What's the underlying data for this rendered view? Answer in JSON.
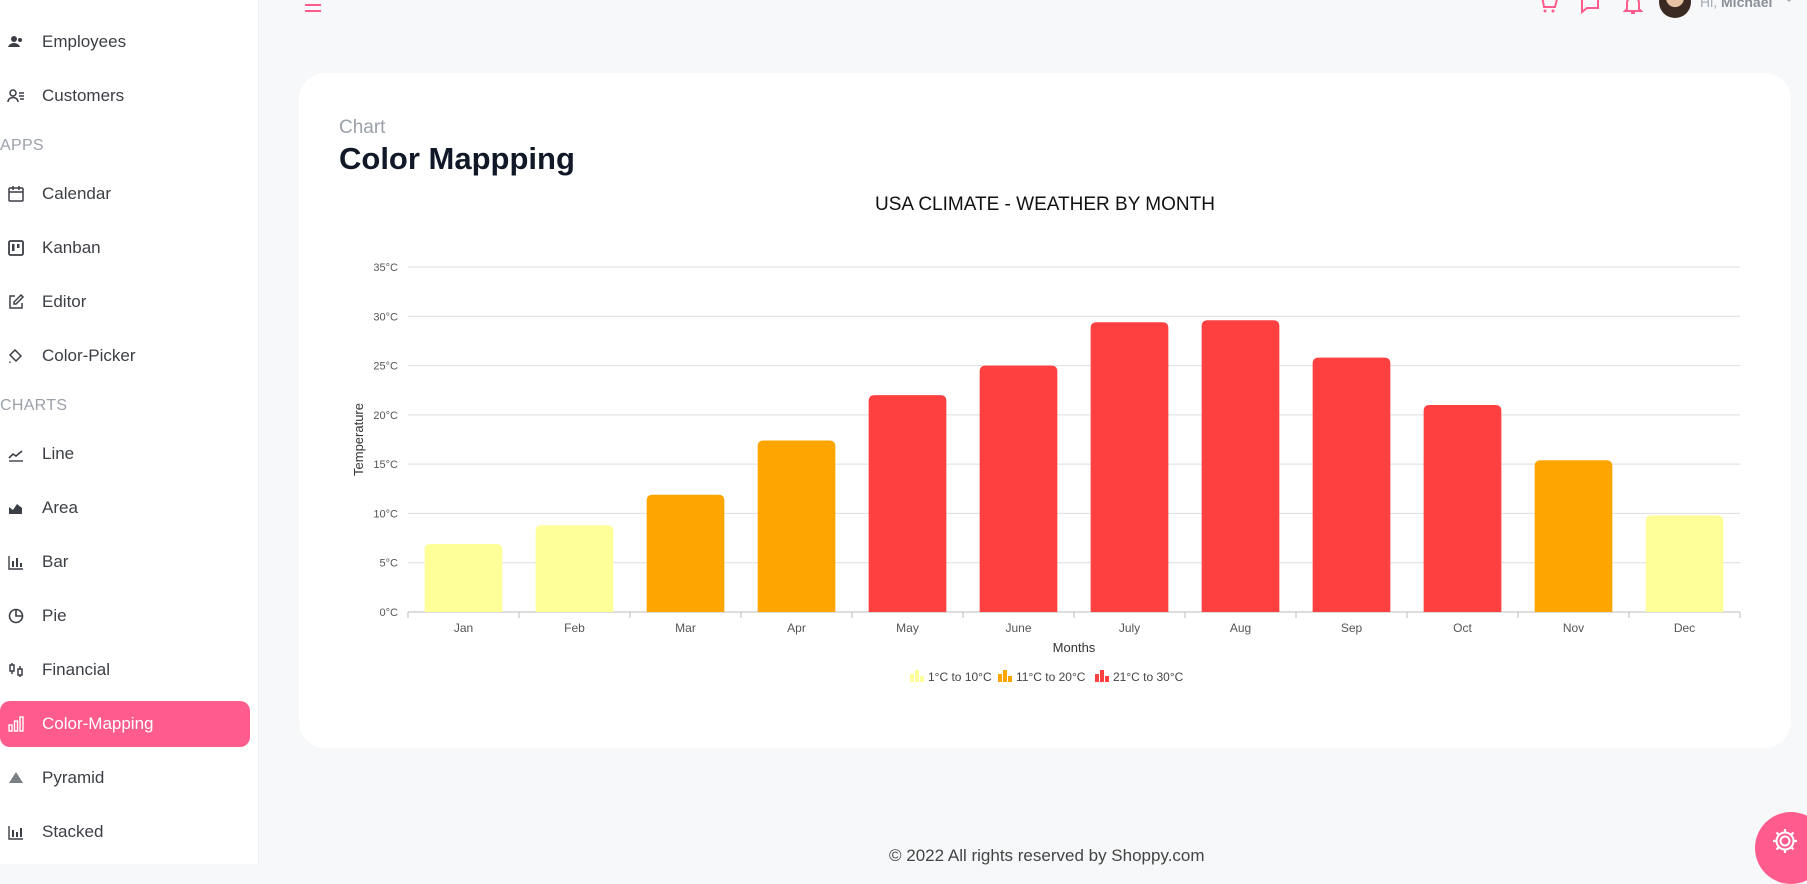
{
  "sidebar": {
    "items_top": [
      {
        "label": "Employees",
        "icon": "employees-icon"
      },
      {
        "label": "Customers",
        "icon": "customers-icon"
      }
    ],
    "section_apps": "APPS",
    "apps": [
      {
        "label": "Calendar",
        "icon": "calendar-icon"
      },
      {
        "label": "Kanban",
        "icon": "kanban-icon"
      },
      {
        "label": "Editor",
        "icon": "editor-icon"
      },
      {
        "label": "Color-Picker",
        "icon": "color-picker-icon"
      }
    ],
    "section_charts": "CHARTS",
    "charts": [
      {
        "label": "Line",
        "icon": "line-chart-icon"
      },
      {
        "label": "Area",
        "icon": "area-chart-icon"
      },
      {
        "label": "Bar",
        "icon": "bar-chart-icon"
      },
      {
        "label": "Pie",
        "icon": "pie-chart-icon"
      },
      {
        "label": "Financial",
        "icon": "financial-icon"
      },
      {
        "label": "Color-Mapping",
        "icon": "color-mapping-icon",
        "active": true
      },
      {
        "label": "Pyramid",
        "icon": "pyramid-icon"
      },
      {
        "label": "Stacked",
        "icon": "stacked-icon"
      }
    ]
  },
  "topbar": {
    "greeting": "Hi,",
    "user_name": "Michael"
  },
  "page": {
    "eyebrow": "Chart",
    "title": "Color Mappping"
  },
  "chart_data": {
    "type": "bar",
    "title": "USA CLIMATE - WEATHER BY MONTH",
    "xlabel": "Months",
    "ylabel": "Temperature",
    "categories": [
      "Jan",
      "Feb",
      "Mar",
      "Apr",
      "May",
      "June",
      "July",
      "Aug",
      "Sep",
      "Oct",
      "Nov",
      "Dec"
    ],
    "values": [
      6.9,
      8.8,
      11.9,
      17.4,
      22.0,
      25.0,
      29.4,
      29.6,
      25.8,
      21.0,
      15.4,
      9.8
    ],
    "colors": [
      "#FFFF99",
      "#FFFF99",
      "#FFA500",
      "#FFA500",
      "#FF4040",
      "#FF4040",
      "#FF4040",
      "#FF4040",
      "#FF4040",
      "#FF4040",
      "#FFA500",
      "#FFFF99"
    ],
    "ylim": [
      0,
      35
    ],
    "yticks": [
      "0°C",
      "5°C",
      "10°C",
      "15°C",
      "20°C",
      "25°C",
      "30°C",
      "35°C"
    ],
    "grid": true,
    "legend_position": "bottom",
    "legend": [
      {
        "label": "1°C to 10°C",
        "color": "#FFFF99"
      },
      {
        "label": "11°C to 20°C",
        "color": "#FFA500"
      },
      {
        "label": "21°C to 30°C",
        "color": "#FF4040"
      }
    ]
  },
  "footer": {
    "text": "© 2022 All rights reserved by Shoppy.com"
  },
  "colors": {
    "accent": "#ff5c8e"
  }
}
